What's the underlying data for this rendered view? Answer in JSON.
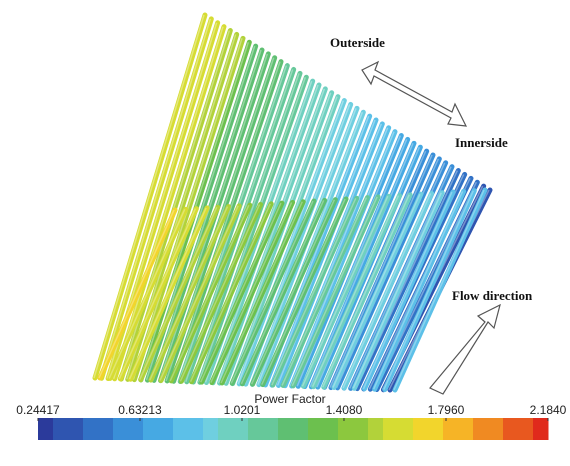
{
  "annotations": {
    "outerside": "Outerside",
    "innerside": "Innerside",
    "flow": "Flow direction"
  },
  "colorbar": {
    "title": "Power Factor",
    "ticks": [
      0.24417,
      0.63213,
      1.0201,
      {
        "value": 1.408,
        "label": "1.4080"
      },
      {
        "value": 1.796,
        "label": "1.7960"
      },
      {
        "value": 2.184,
        "label": "2.1840"
      }
    ]
  }
}
